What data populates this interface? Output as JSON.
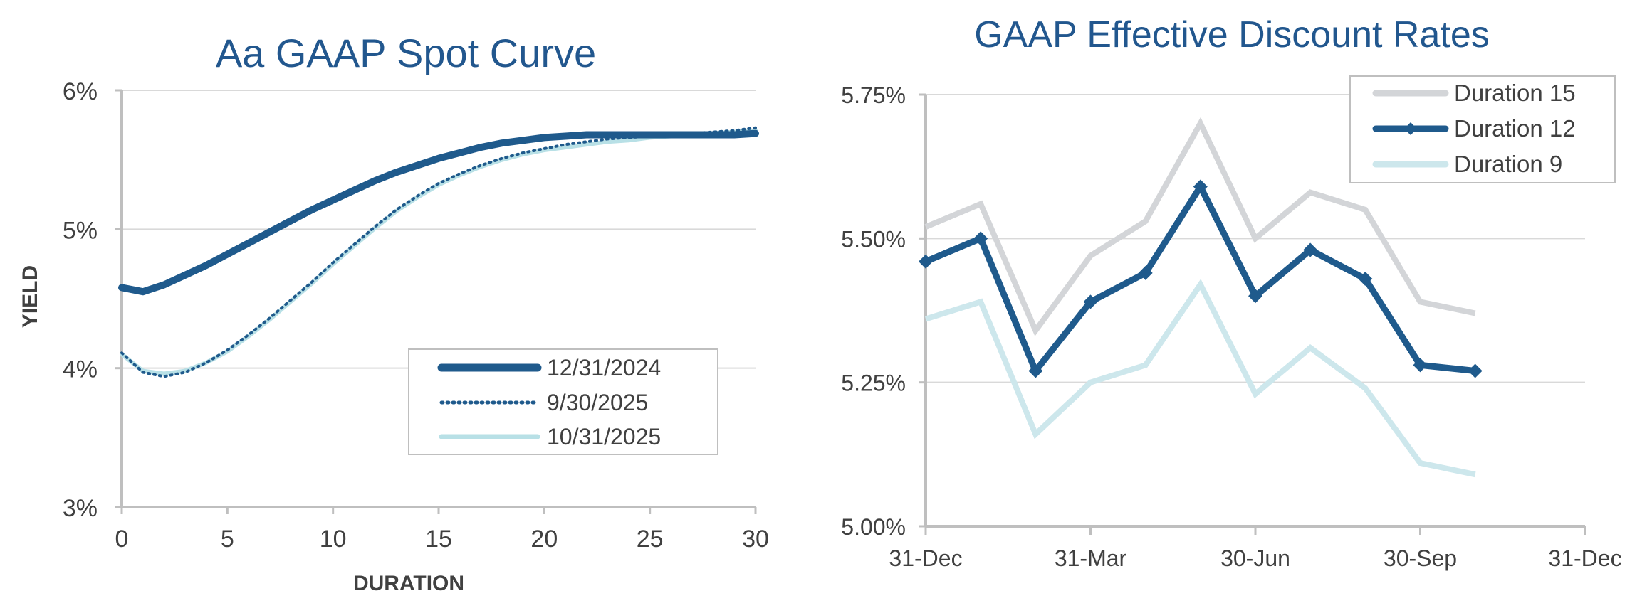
{
  "chart_data": [
    {
      "type": "line",
      "title": "Aa GAAP Spot Curve",
      "xlabel": "DURATION",
      "ylabel": "YIELD",
      "xlim": [
        0,
        30
      ],
      "ylim": [
        3,
        6
      ],
      "xticks": [
        0,
        5,
        10,
        15,
        20,
        25,
        30
      ],
      "yticks": [
        3,
        4,
        5,
        6
      ],
      "ytick_labels": [
        "3%",
        "4%",
        "5%",
        "6%"
      ],
      "grid": "horizontal",
      "legend_position": "bottom-right",
      "x": [
        0,
        1,
        2,
        3,
        4,
        5,
        6,
        7,
        8,
        9,
        10,
        11,
        12,
        13,
        14,
        15,
        16,
        17,
        18,
        19,
        20,
        21,
        22,
        23,
        24,
        25,
        26,
        27,
        28,
        29,
        30
      ],
      "series": [
        {
          "name": "12/31/2024",
          "color": "#1f5a8c",
          "style": "solid-thick",
          "values": [
            4.58,
            4.55,
            4.6,
            4.67,
            4.74,
            4.82,
            4.9,
            4.98,
            5.06,
            5.14,
            5.21,
            5.28,
            5.35,
            5.41,
            5.46,
            5.51,
            5.55,
            5.59,
            5.62,
            5.64,
            5.66,
            5.67,
            5.68,
            5.68,
            5.68,
            5.68,
            5.68,
            5.68,
            5.68,
            5.68,
            5.69
          ]
        },
        {
          "name": "9/30/2025",
          "color": "#1f5a8c",
          "style": "dotted",
          "values": [
            4.11,
            3.97,
            3.94,
            3.97,
            4.04,
            4.13,
            4.24,
            4.36,
            4.49,
            4.62,
            4.76,
            4.89,
            5.02,
            5.14,
            5.24,
            5.33,
            5.4,
            5.46,
            5.51,
            5.55,
            5.58,
            5.61,
            5.63,
            5.65,
            5.66,
            5.67,
            5.68,
            5.69,
            5.7,
            5.71,
            5.73
          ]
        },
        {
          "name": "10/31/2025",
          "color": "#b8e0e6",
          "style": "solid",
          "values": [
            4.1,
            3.98,
            3.96,
            3.98,
            4.04,
            4.12,
            4.23,
            4.35,
            4.48,
            4.61,
            4.75,
            4.88,
            5.01,
            5.13,
            5.23,
            5.32,
            5.39,
            5.45,
            5.5,
            5.54,
            5.57,
            5.59,
            5.61,
            5.63,
            5.64,
            5.66,
            5.67,
            5.68,
            5.69,
            5.7,
            5.71
          ]
        }
      ]
    },
    {
      "type": "line",
      "title": "GAAP Effective Discount Rates",
      "xlabel": "",
      "ylabel": "",
      "xlim": [
        0,
        12
      ],
      "ylim": [
        5.0,
        5.75
      ],
      "xticks": [
        0,
        3,
        6,
        9,
        12
      ],
      "xtick_labels": [
        "31-Dec",
        "31-Mar",
        "30-Jun",
        "30-Sep",
        "31-Dec"
      ],
      "yticks": [
        5.0,
        5.25,
        5.5,
        5.75
      ],
      "ytick_labels": [
        "5.00%",
        "5.25%",
        "5.50%",
        "5.75%"
      ],
      "grid": "horizontal",
      "legend_position": "top-right",
      "x": [
        0,
        1,
        2,
        3,
        4,
        5,
        6,
        7,
        8,
        9,
        10
      ],
      "series": [
        {
          "name": "Duration 15",
          "color": "#d3d5d8",
          "marker": "none",
          "values": [
            5.52,
            5.56,
            5.34,
            5.47,
            5.53,
            5.7,
            5.5,
            5.58,
            5.55,
            5.39,
            5.37
          ]
        },
        {
          "name": "Duration 12",
          "color": "#1f5a8c",
          "marker": "diamond",
          "values": [
            5.46,
            5.5,
            5.27,
            5.39,
            5.44,
            5.59,
            5.4,
            5.48,
            5.43,
            5.28,
            5.27
          ]
        },
        {
          "name": "Duration 9",
          "color": "#cde7ec",
          "marker": "none",
          "values": [
            5.36,
            5.39,
            5.16,
            5.25,
            5.28,
            5.42,
            5.23,
            5.31,
            5.24,
            5.11,
            5.09
          ]
        }
      ]
    }
  ]
}
